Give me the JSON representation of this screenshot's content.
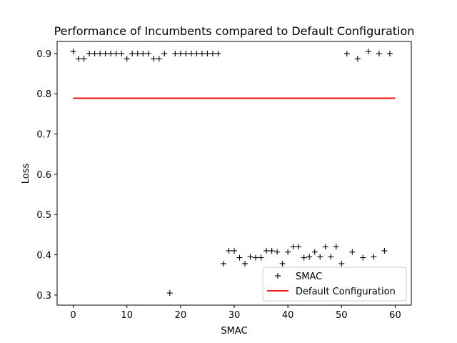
{
  "chart_data": {
    "type": "scatter",
    "title": "Performance of Incumbents compared to Default Configuration",
    "xlabel": "SMAC",
    "ylabel": "Loss",
    "xlim": [
      -3,
      63
    ],
    "ylim": [
      0.275,
      0.93
    ],
    "xticks": [
      0,
      10,
      20,
      30,
      40,
      50,
      60
    ],
    "yticks": [
      0.3,
      0.4,
      0.5,
      0.6,
      0.7,
      0.8,
      0.9
    ],
    "xtick_labels": [
      "0",
      "10",
      "20",
      "30",
      "40",
      "50",
      "60"
    ],
    "ytick_labels": [
      "0.3",
      "0.4",
      "0.5",
      "0.6",
      "0.7",
      "0.8",
      "0.9"
    ],
    "grid": false,
    "legend_position": "lower-right",
    "series": [
      {
        "name": "SMAC",
        "kind": "scatter",
        "marker": "plus",
        "color": "#000000",
        "x": [
          0,
          1,
          2,
          3,
          4,
          5,
          6,
          7,
          8,
          9,
          10,
          11,
          12,
          13,
          14,
          15,
          16,
          17,
          18,
          19,
          20,
          21,
          22,
          23,
          24,
          25,
          26,
          27,
          28,
          29,
          30,
          31,
          32,
          33,
          34,
          35,
          36,
          37,
          38,
          39,
          40,
          41,
          42,
          43,
          44,
          45,
          46,
          47,
          48,
          49,
          50,
          51,
          52,
          53,
          54,
          55,
          56,
          57,
          58,
          59
        ],
        "y": [
          0.905,
          0.887,
          0.887,
          0.9,
          0.9,
          0.9,
          0.9,
          0.9,
          0.9,
          0.9,
          0.887,
          0.9,
          0.9,
          0.9,
          0.9,
          0.887,
          0.887,
          0.9,
          0.305,
          0.9,
          0.9,
          0.9,
          0.9,
          0.9,
          0.9,
          0.9,
          0.9,
          0.9,
          0.378,
          0.41,
          0.41,
          0.393,
          0.378,
          0.395,
          0.393,
          0.393,
          0.41,
          0.41,
          0.407,
          0.378,
          0.407,
          0.42,
          0.42,
          0.393,
          0.395,
          0.407,
          0.395,
          0.42,
          0.395,
          0.42,
          0.378,
          0.9,
          0.407,
          0.887,
          0.393,
          0.905,
          0.395,
          0.9,
          0.41,
          0.9
        ]
      },
      {
        "name": "Default Configuration",
        "kind": "line",
        "color": "#ff0000",
        "x": [
          0,
          60
        ],
        "y": [
          0.789,
          0.789
        ]
      }
    ]
  }
}
